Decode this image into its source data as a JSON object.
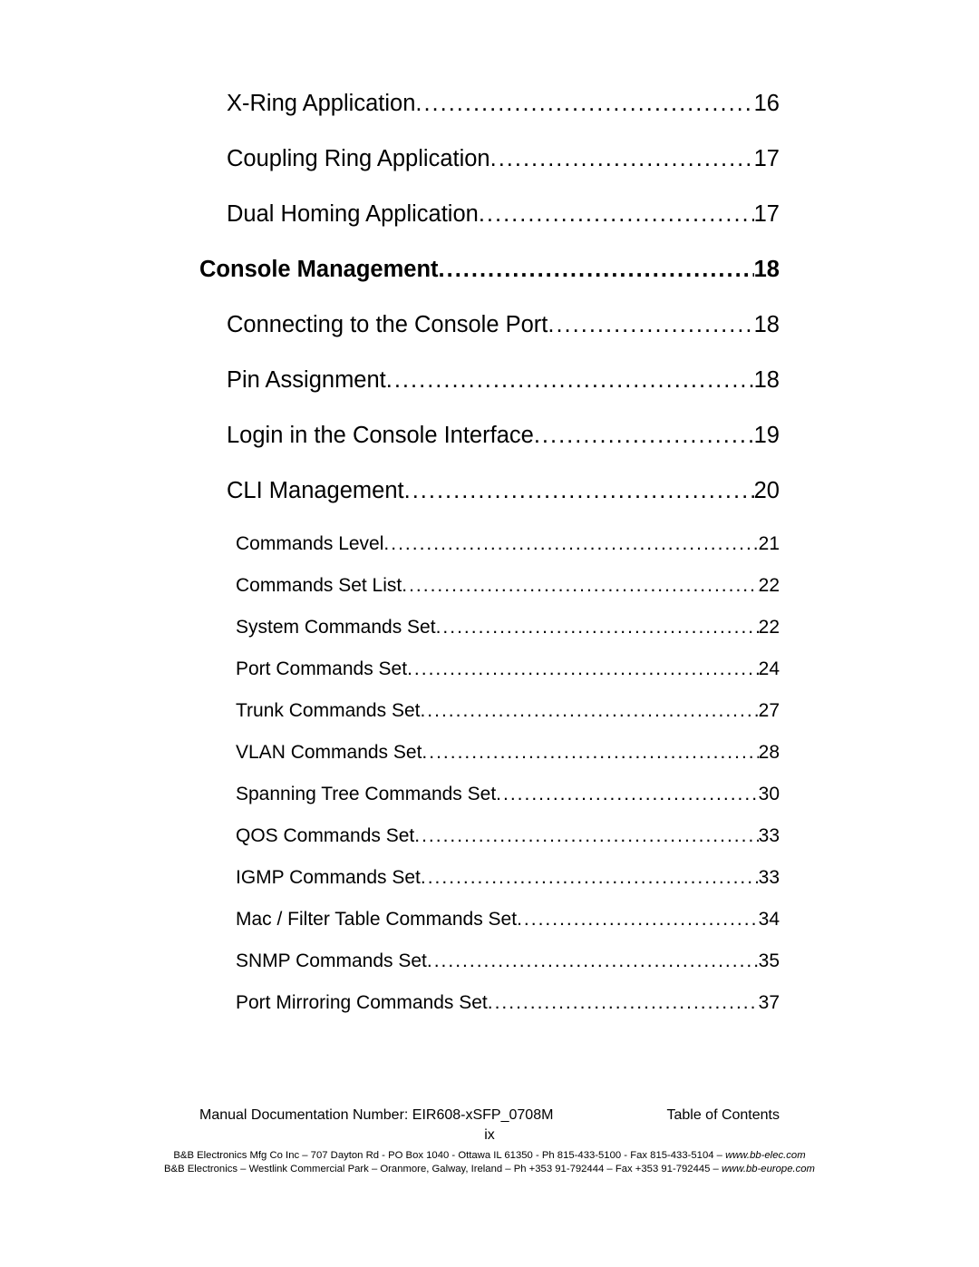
{
  "toc": [
    {
      "level": "sub",
      "title": "X-Ring Application",
      "page": "16"
    },
    {
      "level": "sub",
      "title": "Coupling Ring Application",
      "page": "17"
    },
    {
      "level": "sub",
      "title": "Dual Homing Application",
      "page": "17"
    },
    {
      "level": "heading",
      "title": "Console Management",
      "page": "18"
    },
    {
      "level": "sub",
      "title": "Connecting to the Console Port",
      "page": "18"
    },
    {
      "level": "sub",
      "title": "Pin Assignment",
      "page": "18"
    },
    {
      "level": "sub",
      "title": "Login in the Console Interface",
      "page": "19"
    },
    {
      "level": "sub",
      "title": "CLI Management",
      "page": "20"
    },
    {
      "level": "subsub",
      "title": "Commands Level",
      "page": "21"
    },
    {
      "level": "subsub",
      "title": "Commands Set List",
      "page": "22"
    },
    {
      "level": "subsub",
      "title": "System Commands Set",
      "page": "22"
    },
    {
      "level": "subsub",
      "title": "Port Commands Set",
      "page": "24"
    },
    {
      "level": "subsub",
      "title": "Trunk Commands Set",
      "page": "27"
    },
    {
      "level": "subsub",
      "title": "VLAN Commands Set",
      "page": "28"
    },
    {
      "level": "subsub",
      "title": "Spanning Tree Commands Set",
      "page": "30"
    },
    {
      "level": "subsub",
      "title": "QOS Commands Set",
      "page": "33"
    },
    {
      "level": "subsub",
      "title": "IGMP Commands Set",
      "page": "33"
    },
    {
      "level": "subsub",
      "title": "Mac / Filter Table Commands Set",
      "page": "34"
    },
    {
      "level": "subsub",
      "title": "SNMP Commands Set",
      "page": "35"
    },
    {
      "level": "subsub",
      "title": "Port Mirroring Commands Set",
      "page": "37"
    }
  ],
  "footer": {
    "doc_left": "Manual Documentation Number: EIR608-xSFP_0708M",
    "doc_right": "Table of Contents",
    "page_num": "ix",
    "line1_prefix": "B&B Electronics Mfg Co Inc – 707 Dayton Rd - PO Box 1040 - Ottawa IL 61350 - Ph 815-433-5100 - Fax 815-433-5104 – ",
    "line1_site": "www.bb-elec.com",
    "line2_prefix": "B&B Electronics – Westlink Commercial Park – Oranmore, Galway, Ireland – Ph +353 91-792444 – Fax +353 91-792445 – ",
    "line2_site": "www.bb-europe.com"
  }
}
